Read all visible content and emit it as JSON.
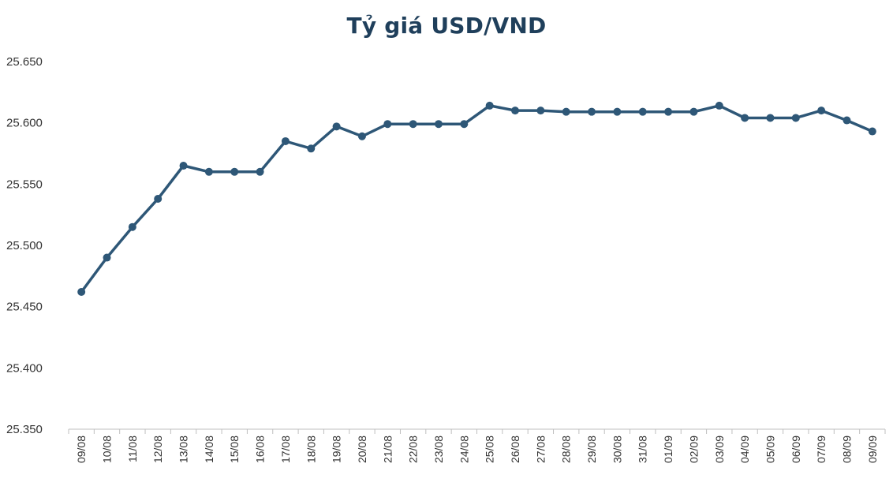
{
  "chart_data": {
    "type": "line",
    "title": "Tỷ giá USD/VND",
    "xlabel": "",
    "ylabel": "",
    "ylim": [
      25350,
      25650
    ],
    "y_ticks": [
      25350,
      25400,
      25450,
      25500,
      25550,
      25600,
      25650
    ],
    "y_tick_labels": [
      "25.350",
      "25.400",
      "25.450",
      "25.500",
      "25.550",
      "25.600",
      "25.650"
    ],
    "grid": false,
    "categories": [
      "09/08",
      "10/08",
      "11/08",
      "12/08",
      "13/08",
      "14/08",
      "15/08",
      "16/08",
      "17/08",
      "18/08",
      "19/08",
      "20/08",
      "21/08",
      "22/08",
      "23/08",
      "24/08",
      "25/08",
      "26/08",
      "27/08",
      "28/08",
      "29/08",
      "30/08",
      "31/08",
      "01/09",
      "02/09",
      "03/09",
      "04/09",
      "05/09",
      "06/09",
      "07/09",
      "08/09",
      "09/09"
    ],
    "series": [
      {
        "values": [
          25462,
          25490,
          25515,
          25538,
          25565,
          25560,
          25560,
          25560,
          25585,
          25579,
          25597,
          25589,
          25599,
          25599,
          25599,
          25599,
          25614,
          25610,
          25610,
          25609,
          25609,
          25609,
          25609,
          25609,
          25609,
          25614,
          25604,
          25604,
          25604,
          25610,
          25602,
          25593
        ],
        "color": "#2e5777"
      }
    ]
  }
}
